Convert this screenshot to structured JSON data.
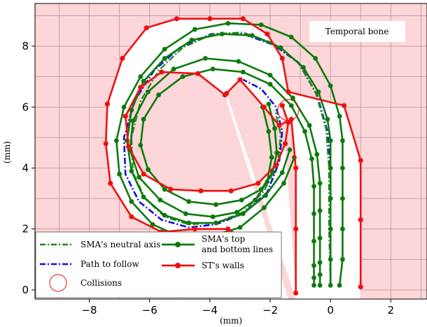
{
  "chart_data": {
    "type": "line",
    "xlabel": "(mm)",
    "ylabel": "(mm)",
    "xlim": [
      -9.8,
      3.2
    ],
    "ylim": [
      -0.3,
      9.4
    ],
    "xticks": [
      -8,
      -6,
      -4,
      -2,
      0,
      2
    ],
    "yticks": [
      0,
      2,
      4,
      6,
      8
    ],
    "xtick_labels": [
      "−8",
      "−6",
      "−4",
      "−2",
      "0",
      "2"
    ],
    "ytick_labels": [
      "0",
      "2",
      "4",
      "6",
      "8"
    ],
    "grid": true,
    "annotation": "Temporal bone",
    "legend_location": "lower-left",
    "colors": {
      "background": "#fcd6d8",
      "grid": "#b39a9c",
      "neutral_axis": "#1a8a1a",
      "path": "#1010e0",
      "sma_lines": "#0c7a0c",
      "walls": "#ee1010",
      "collision": "#ee1010"
    },
    "series": [
      {
        "name": "ST's walls",
        "style": "red-line-markers",
        "parts": [
          {
            "x": [
              -3.45,
              -3.0,
              -2.2,
              -1.7,
              -1.3,
              -1.15,
              -1.15,
              -1.15
            ],
            "y": [
              6.45,
              6.9,
              6.0,
              5.4,
              5.6,
              4.0,
              2.0,
              -0.1
            ]
          },
          {
            "x": [
              -3.5,
              -4.4,
              -5.6,
              -6.3,
              -6.8,
              -6.7,
              -6.2,
              -5.3,
              -4.3,
              -3.3,
              -2.4,
              -1.8,
              -1.5,
              -1.4,
              -1.6
            ],
            "y": [
              6.4,
              7.1,
              7.15,
              6.65,
              5.7,
              4.7,
              3.8,
              3.3,
              3.25,
              3.25,
              3.5,
              4.1,
              4.8,
              5.5,
              6.05
            ]
          },
          {
            "x": [
              -2.0,
              -2.3,
              -3.4,
              -4.5,
              -5.6,
              -6.6,
              -7.3,
              -7.45,
              -7.4,
              -6.9,
              -6.1,
              -5.1,
              -4.0,
              -2.9,
              -2.1,
              -1.6,
              -1.4,
              0.45,
              1.0,
              1.0,
              1.0
            ],
            "y": [
              -0.1,
              1.3,
              2.0,
              2.0,
              1.9,
              2.4,
              3.5,
              4.8,
              6.1,
              7.6,
              8.6,
              8.9,
              8.9,
              8.9,
              8.4,
              7.6,
              6.5,
              6.05,
              4.25,
              2.3,
              0.1
            ]
          }
        ]
      },
      {
        "name": "SMA's top and bottom lines",
        "style": "green-line-markers",
        "parts": [
          {
            "x": [
              -2.05,
              -1.85,
              -1.78,
              -1.92,
              -2.3,
              -2.95,
              -3.8,
              -4.7,
              -5.5,
              -6.05,
              -6.3,
              -6.2,
              -5.7,
              -4.9,
              -3.9,
              -2.9,
              -2.0,
              -1.3,
              -0.85,
              -0.62,
              -0.55,
              -0.55,
              -0.55,
              -0.55,
              -0.55,
              -0.55
            ],
            "y": [
              6.1,
              5.3,
              4.5,
              3.85,
              3.3,
              2.95,
              2.8,
              2.9,
              3.3,
              3.95,
              4.75,
              5.6,
              6.4,
              7.0,
              7.25,
              7.15,
              6.75,
              6.05,
              5.2,
              4.3,
              3.4,
              2.5,
              1.6,
              0.8,
              0.4,
              0.15
            ],
            "step": 2
          },
          {
            "x": [
              0.0,
              0.0,
              0.0,
              0.0,
              0.0,
              0.0,
              -0.1,
              -0.4,
              -0.9,
              -1.65,
              -2.6,
              -3.6,
              -4.6,
              -5.5,
              -6.2,
              -6.6,
              -6.75,
              -6.6,
              -6.2,
              -5.5,
              -4.7,
              -3.8,
              -2.9,
              -2.15,
              -1.6,
              -1.35
            ],
            "y": [
              0.15,
              1.0,
              2.0,
              3.0,
              4.0,
              4.9,
              5.6,
              6.5,
              7.3,
              7.95,
              8.35,
              8.4,
              8.2,
              7.6,
              6.85,
              5.9,
              4.9,
              3.9,
              3.05,
              2.45,
              2.2,
              2.2,
              2.5,
              3.1,
              3.85,
              4.6
            ],
            "step": 2
          },
          {
            "x": [
              0.3,
              0.4,
              0.4,
              0.4,
              0.4,
              0.4,
              0.3,
              0.0,
              -0.5,
              -1.3,
              -2.3,
              -3.4,
              -4.5,
              -5.5,
              -6.3,
              -6.85,
              -7.1,
              -7.0,
              -6.6,
              -5.9,
              -5.0,
              -4.0,
              -3.0,
              -2.2,
              -1.55,
              -1.2
            ],
            "y": [
              0.15,
              1.0,
              2.0,
              3.0,
              4.0,
              4.9,
              5.7,
              6.7,
              7.6,
              8.3,
              8.7,
              8.75,
              8.55,
              7.9,
              7.0,
              6.0,
              4.9,
              3.8,
              2.9,
              2.15,
              1.75,
              1.75,
              2.05,
              2.7,
              3.5,
              4.35
            ],
            "step": 2
          },
          {
            "x": [
              -2.25,
              -2.05,
              -1.95,
              -2.1,
              -2.5,
              -3.1,
              -3.9,
              -4.8,
              -5.65,
              -6.35,
              -6.65,
              -6.55,
              -6.05,
              -5.2,
              -4.15,
              -3.05,
              -2.0,
              -1.25,
              -0.7,
              -0.45,
              -0.35,
              -0.35,
              -0.35,
              -0.35,
              -0.35,
              -0.35
            ],
            "y": [
              6.0,
              5.2,
              4.35,
              3.55,
              2.95,
              2.55,
              2.4,
              2.5,
              2.95,
              3.7,
              4.6,
              5.55,
              6.5,
              7.25,
              7.6,
              7.5,
              7.05,
              6.3,
              5.4,
              4.45,
              3.5,
              2.6,
              1.7,
              0.9,
              0.5,
              0.15
            ],
            "step": 2
          }
        ]
      },
      {
        "name": "SMA's neutral axis",
        "style": "green-dashdot",
        "parts": [
          {
            "x": [
              0.0,
              -0.05,
              -0.05,
              -0.15,
              -0.5,
              -1.1,
              -1.9,
              -2.9,
              -3.9,
              -4.9,
              -5.7,
              -6.3,
              -6.6,
              -6.55,
              -6.15,
              -5.5,
              -4.7,
              -3.8,
              -2.9,
              -2.2,
              -1.75,
              -1.65,
              -1.85
            ],
            "y": [
              0.15,
              2.0,
              4.0,
              5.3,
              6.5,
              7.5,
              8.1,
              8.45,
              8.4,
              7.95,
              7.2,
              6.2,
              5.0,
              3.85,
              3.0,
              2.4,
              2.15,
              2.2,
              2.55,
              3.25,
              4.15,
              5.1,
              5.9
            ]
          }
        ]
      },
      {
        "name": "Path to follow",
        "style": "blue-dashdot",
        "parts": [
          {
            "x": [
              0.0,
              0.0,
              0.0,
              -0.1,
              -0.45,
              -1.05,
              -1.9,
              -2.9,
              -3.95,
              -5.0,
              -5.85,
              -6.5,
              -6.85,
              -6.8,
              -6.35,
              -5.6,
              -4.7,
              -3.8,
              -2.9,
              -2.1,
              -1.7,
              -1.6,
              -1.8,
              -2.3,
              -2.9
            ],
            "y": [
              0.15,
              2.0,
              4.0,
              5.2,
              6.4,
              7.45,
              8.05,
              8.4,
              8.4,
              7.95,
              7.2,
              6.2,
              5.0,
              3.8,
              2.9,
              2.3,
              2.05,
              2.15,
              2.5,
              3.2,
              4.2,
              5.2,
              6.0,
              6.6,
              6.9
            ]
          }
        ]
      }
    ],
    "collisions": [
      {
        "x": -1.4,
        "y": 5.9,
        "r": 0.35
      }
    ]
  },
  "legend": {
    "neutral_axis": "SMA's neutral axis",
    "path": "Path to follow",
    "collisions": "Collisions",
    "sma_lines_1": "SMA's top",
    "sma_lines_2": "and bottom lines",
    "walls": "ST's walls"
  }
}
